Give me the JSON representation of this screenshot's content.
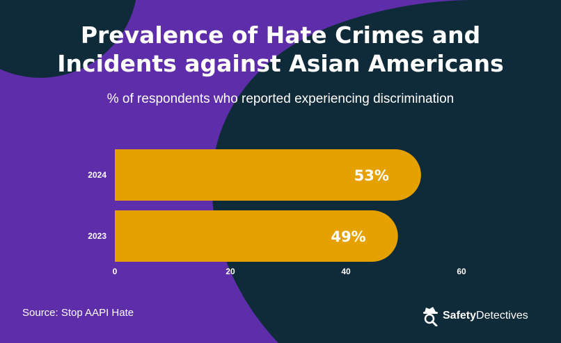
{
  "title_line1": "Prevalence of Hate Crimes and",
  "title_line2": "Incidents against Asian Americans",
  "subtitle": "% of respondents who reported experiencing discrimination",
  "source": "Source: Stop AAPI Hate",
  "brand": {
    "part1": "Safety",
    "part2": "Detectives",
    "icon": "detective-hat-icon"
  },
  "colors": {
    "purple": "#5e2eaa",
    "navy": "#0f2a38",
    "bar": "#e5a100",
    "text": "#ffffff"
  },
  "chart_data": {
    "type": "bar",
    "orientation": "horizontal",
    "categories": [
      "2024",
      "2023"
    ],
    "values": [
      53,
      49
    ],
    "data_labels": [
      "53%",
      "49%"
    ],
    "xlim": [
      0,
      60
    ],
    "xticks": [
      "0",
      "20",
      "40",
      "60"
    ],
    "grid": false
  }
}
